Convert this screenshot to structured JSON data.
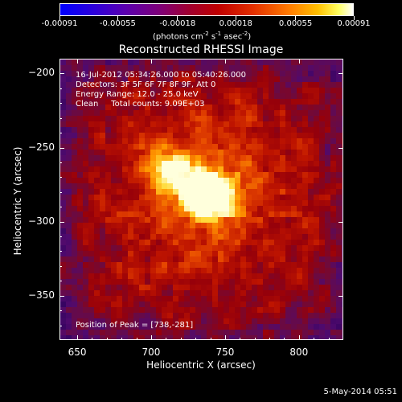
{
  "colorbar": {
    "ticks": [
      "-0.00091",
      "-0.00055",
      "-0.00018",
      "0.00018",
      "0.00055",
      "0.00091"
    ],
    "units": "(photons cm",
    "units_exp1": "-2",
    "units_mid": " s",
    "units_exp2": "-1",
    "units_mid2": " asec",
    "units_exp3": "-2",
    "units_end": ")"
  },
  "chart_data": {
    "type": "heatmap",
    "title": "Reconstructed RHESSI Image",
    "xlabel": "Heliocentric X (arcsec)",
    "ylabel": "Heliocentric Y (arcsec)",
    "xlim": [
      638,
      830
    ],
    "ylim": [
      -380,
      -190
    ],
    "x_ticks": [
      "650",
      "700",
      "750",
      "800"
    ],
    "y_ticks": [
      "-200",
      "-250",
      "-300",
      "-350"
    ],
    "peak": [
      738,
      -281
    ],
    "annotations": {
      "line1": "16-Jul-2012 05:34:26.000 to 05:40:26.000",
      "line2": "Detectors: 3F 5F 6F 7F 8F 9F, Att 0",
      "line3": "Energy Range: 12.0 - 25.0 keV",
      "line4": "Clean     Total counts: 9.09E+03",
      "peak_label": "Position of Peak = [738,-281]"
    },
    "colorbar_range": [
      -0.00091,
      0.00091
    ]
  },
  "timestamp": "5-May-2014 05:51"
}
